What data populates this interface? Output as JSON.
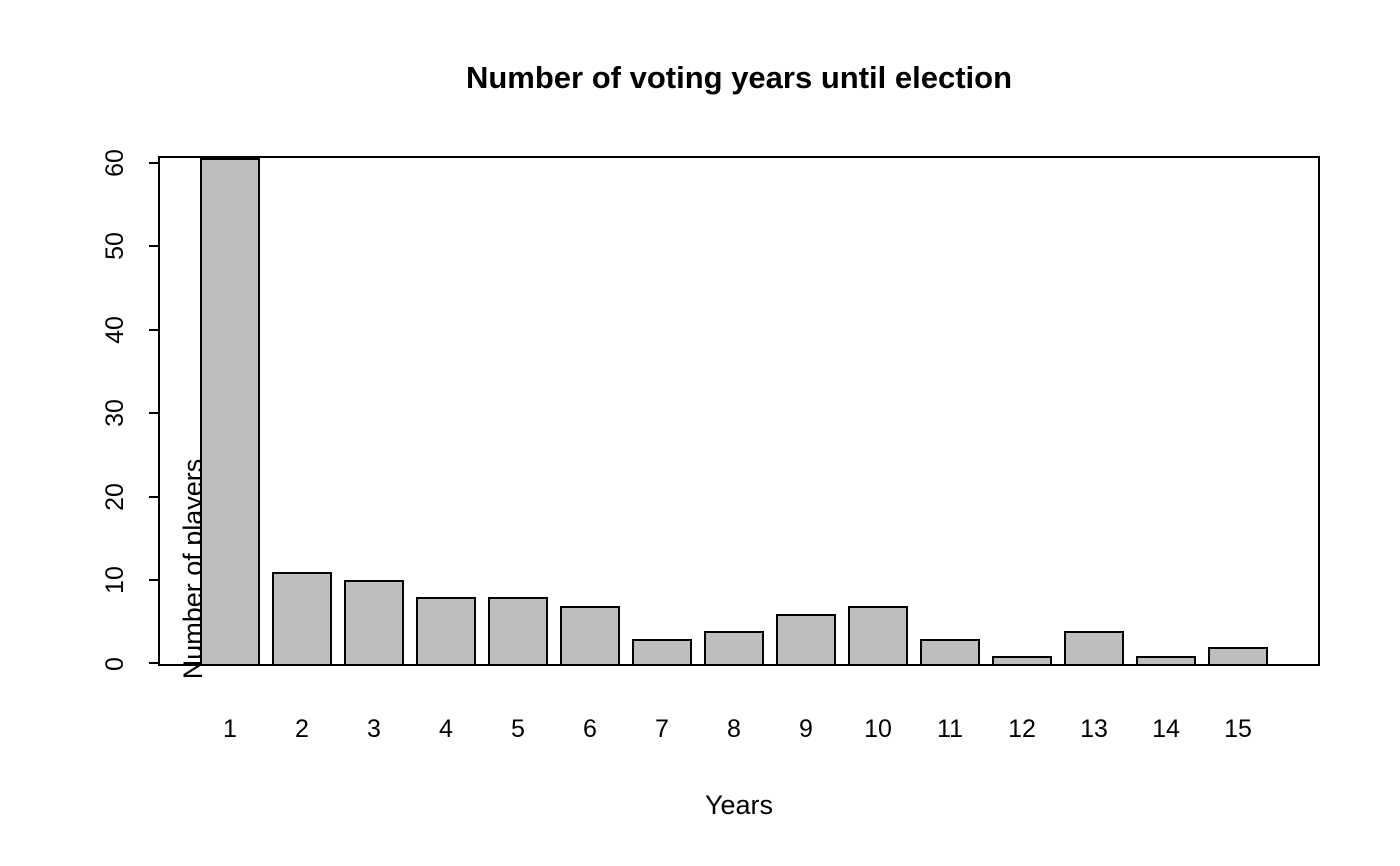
{
  "chart_data": {
    "type": "bar",
    "title": "Number of voting years until election",
    "xlabel": "Years",
    "ylabel": "Number of players",
    "categories": [
      "1",
      "2",
      "3",
      "4",
      "5",
      "6",
      "7",
      "8",
      "9",
      "10",
      "11",
      "12",
      "13",
      "14",
      "15"
    ],
    "values": [
      61,
      11,
      10,
      8,
      8,
      7,
      3,
      4,
      6,
      7,
      3,
      1,
      4,
      1,
      2
    ],
    "yticks": [
      0,
      10,
      20,
      30,
      40,
      50,
      60
    ],
    "ylim": [
      0,
      61
    ],
    "xlim_note": "first bar clipped at top frame",
    "grid": false,
    "legend": null,
    "bar_fill": "#bebebe",
    "bar_border": "#000000",
    "axis_color": "#000000",
    "text_color": "#000000",
    "background": "#ffffff"
  }
}
